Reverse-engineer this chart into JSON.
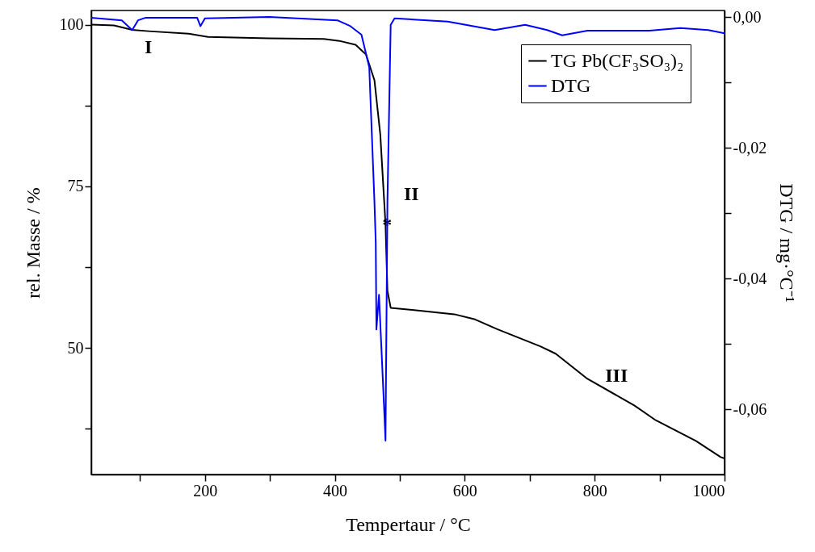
{
  "chart_data": {
    "type": "line",
    "xlabel": "Tempertaur / °C",
    "ylabel": "rel. Masse / %",
    "y2label": "DTG / mg·°C⁻¹",
    "x": [
      25,
      60,
      88,
      113,
      175,
      205,
      299,
      383,
      407,
      432,
      448,
      461,
      470,
      478,
      481,
      486,
      525,
      584,
      616,
      650,
      717,
      740,
      789,
      861,
      894,
      956,
      994,
      1000
    ],
    "series": [
      {
        "name": "TG Pb(CF₃SO₃)₂",
        "color": "#000000",
        "values": [
          100,
          99.9,
          99.2,
          99.0,
          98.6,
          98.1,
          97.9,
          97.8,
          97.5,
          96.9,
          95.4,
          91.4,
          83.0,
          69.2,
          58.8,
          56.2,
          55.8,
          55.2,
          54.4,
          52.9,
          50.2,
          49.1,
          45.2,
          41.1,
          38.8,
          35.6,
          33.1,
          32.9
        ]
      },
      {
        "name": "DTG",
        "color": "#0000ff",
        "axis": "y2",
        "x": [
          25,
          72,
          88,
          97,
          109,
          188,
          193,
          200,
          299,
          404,
          424,
          441,
          453,
          457,
          461,
          463,
          464,
          468,
          476,
          478,
          481,
          486,
          492,
          574,
          646,
          693,
          727,
          750,
          789,
          884,
          932,
          975,
          1000
        ],
        "values": [
          -0.0001,
          -0.0005,
          -0.002,
          -0.0005,
          -0.0001,
          -0.0001,
          -0.0014,
          -0.0002,
          0.0,
          -0.0005,
          -0.0014,
          -0.0027,
          -0.0077,
          -0.018,
          -0.0283,
          -0.0345,
          -0.0478,
          -0.0425,
          -0.0601,
          -0.0648,
          -0.0283,
          -0.0012,
          -0.0002,
          -0.0007,
          -0.002,
          -0.0012,
          -0.002,
          -0.0028,
          -0.0021,
          -0.0021,
          -0.0017,
          -0.002,
          -0.0025
        ]
      }
    ],
    "xlim": [
      25,
      1000
    ],
    "xticks": [
      {
        "value": 100,
        "label": null
      },
      200,
      {
        "value": 300,
        "label": null
      },
      400,
      {
        "value": 500,
        "label": null
      },
      600,
      {
        "value": 700,
        "label": null
      },
      800,
      {
        "value": 900,
        "label": null
      },
      1000
    ],
    "ylim": [
      30.4,
      102.2
    ],
    "yticks": [
      {
        "value": 37.5,
        "label": null
      },
      50,
      {
        "value": 62.5,
        "label": null
      },
      75,
      {
        "value": 87.5,
        "label": null
      },
      100
    ],
    "y2lim": [
      -0.07,
      0.001
    ],
    "y2ticks": [
      {
        "value": 0,
        "label": "0,00"
      },
      {
        "value": -0.01,
        "label": null
      },
      {
        "value": -0.02,
        "label": "-0,02"
      },
      {
        "value": -0.03,
        "label": null
      },
      {
        "value": -0.04,
        "label": "-0,04"
      },
      {
        "value": -0.05,
        "label": null
      },
      {
        "value": -0.06,
        "label": "-0,06"
      }
    ],
    "annotations": [
      {
        "text": "I",
        "x": 113,
        "y": 99.0
      },
      {
        "text": "II",
        "x": 478,
        "y": 69.2
      },
      {
        "text": "*",
        "x": 478,
        "y": 69.2
      },
      {
        "text": "III",
        "x": 861,
        "y": 41.1
      }
    ],
    "legend": "top right",
    "grid": false
  }
}
